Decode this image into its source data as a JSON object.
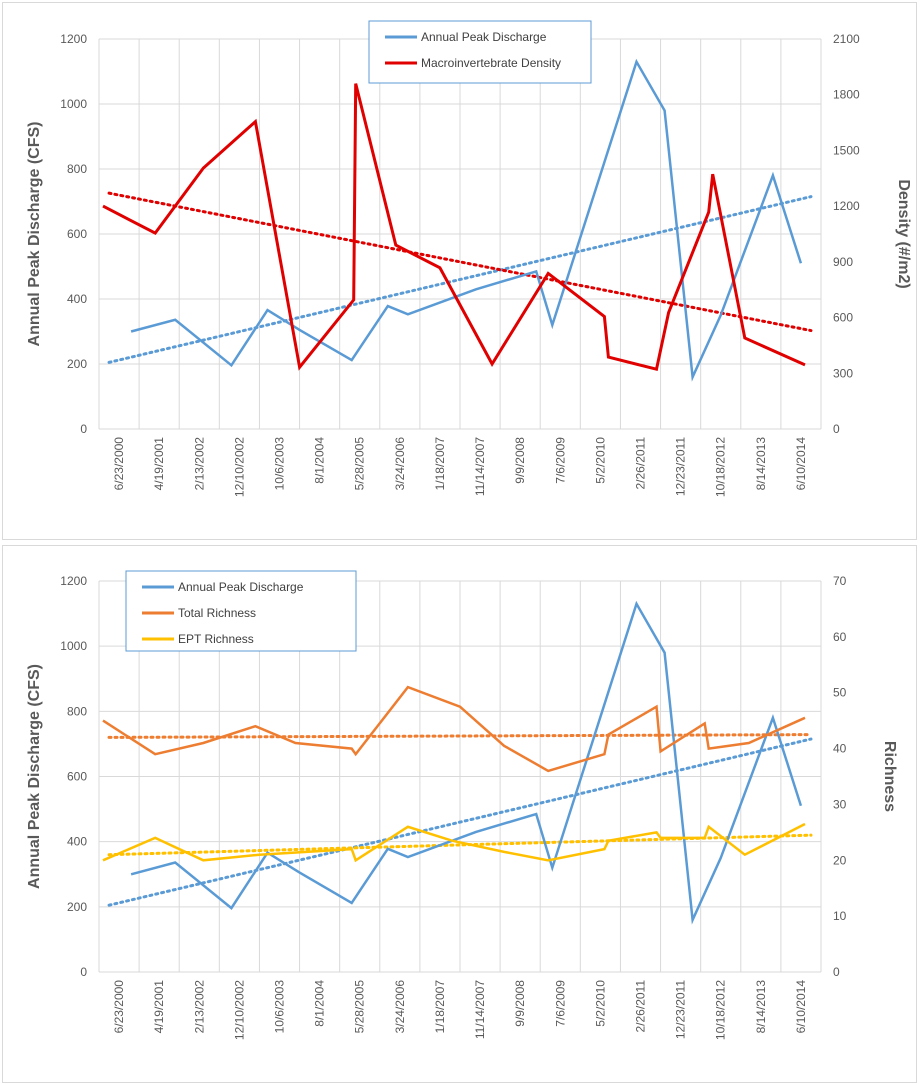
{
  "colors": {
    "discharge": "#5b9bd5",
    "density": "#e00000",
    "total_richness": "#ed7d31",
    "ept_richness": "#ffc000",
    "grid": "#d9d9d9",
    "axis_text": "#595959"
  },
  "chart_data": [
    {
      "type": "line",
      "x_categories": [
        "6/23/2000",
        "4/19/2001",
        "2/13/2002",
        "12/10/2002",
        "10/6/2003",
        "8/1/2004",
        "5/28/2005",
        "3/24/2006",
        "1/18/2007",
        "11/14/2007",
        "9/9/2008",
        "7/6/2009",
        "5/2/2010",
        "2/26/2011",
        "12/23/2011",
        "10/18/2012",
        "8/14/2013",
        "6/10/2014"
      ],
      "x_label": "",
      "y_left_label": "Annual Peak Discharge (CFS)",
      "y_left_lim": [
        0,
        1200
      ],
      "y_left_ticks": [
        "0",
        "200",
        "400",
        "600",
        "800",
        "1000",
        "1200"
      ],
      "y_right_label": "Density  (#/m2)",
      "y_right_lim": [
        0,
        2100
      ],
      "y_right_ticks": [
        "0",
        "300",
        "600",
        "900",
        "1200",
        "1500",
        "1800",
        "2100"
      ],
      "legend": [
        "Annual Peak Discharge",
        "Macroinvertebrate Density"
      ],
      "series": [
        {
          "name": "Annual Peak Discharge",
          "axis": "left",
          "points": [
            [
              0.8,
              300
            ],
            [
              1.9,
              336
            ],
            [
              3.3,
              196
            ],
            [
              4.2,
              366
            ],
            [
              5.0,
              305
            ],
            [
              6.3,
              212
            ],
            [
              7.2,
              378
            ],
            [
              7.7,
              353
            ],
            [
              9.4,
              430
            ],
            [
              10.9,
              485
            ],
            [
              11.3,
              320
            ],
            [
              13.4,
              1130
            ],
            [
              14.1,
              980
            ],
            [
              14.8,
              160
            ],
            [
              15.5,
              350
            ],
            [
              16.8,
              780
            ],
            [
              17.5,
              510
            ]
          ]
        },
        {
          "name": "Macroinvertebrate Density",
          "axis": "right",
          "trend": [
            1270,
            530
          ],
          "points": [
            [
              0.1,
              1200
            ],
            [
              1.4,
              1055
            ],
            [
              2.6,
              1405
            ],
            [
              3.9,
              1655
            ],
            [
              5.0,
              333
            ],
            [
              6.35,
              695
            ],
            [
              6.4,
              1860
            ],
            [
              7.4,
              990
            ],
            [
              8.5,
              868
            ],
            [
              9.8,
              350
            ],
            [
              11.2,
              838
            ],
            [
              12.6,
              605
            ],
            [
              12.7,
              387
            ],
            [
              13.9,
              322
            ],
            [
              14.2,
              627
            ],
            [
              15.2,
              1168
            ],
            [
              15.3,
              1372
            ],
            [
              16.1,
              490
            ],
            [
              17.6,
              345
            ]
          ]
        }
      ],
      "discharge_trend": [
        205,
        715
      ]
    },
    {
      "type": "line",
      "x_categories": [
        "6/23/2000",
        "4/19/2001",
        "2/13/2002",
        "12/10/2002",
        "10/6/2003",
        "8/1/2004",
        "5/28/2005",
        "3/24/2006",
        "1/18/2007",
        "11/14/2007",
        "9/9/2008",
        "7/6/2009",
        "5/2/2010",
        "2/26/2011",
        "12/23/2011",
        "10/18/2012",
        "8/14/2013",
        "6/10/2014"
      ],
      "x_label": "",
      "y_left_label": "Annual Peak Discharge (CFS)",
      "y_left_lim": [
        0,
        1200
      ],
      "y_left_ticks": [
        "0",
        "200",
        "400",
        "600",
        "800",
        "1000",
        "1200"
      ],
      "y_right_label": "Richness",
      "y_right_lim": [
        0,
        70
      ],
      "y_right_ticks": [
        "0",
        "10",
        "20",
        "30",
        "40",
        "50",
        "60",
        "70"
      ],
      "legend": [
        "Annual Peak Discharge",
        "Total Richness",
        "EPT Richness"
      ],
      "series": [
        {
          "name": "Annual Peak Discharge",
          "axis": "left",
          "points": [
            [
              0.8,
              300
            ],
            [
              1.9,
              336
            ],
            [
              3.3,
              196
            ],
            [
              4.2,
              366
            ],
            [
              5.0,
              305
            ],
            [
              6.3,
              212
            ],
            [
              7.2,
              378
            ],
            [
              7.7,
              353
            ],
            [
              9.4,
              430
            ],
            [
              10.9,
              485
            ],
            [
              11.3,
              320
            ],
            [
              13.4,
              1130
            ],
            [
              14.1,
              980
            ],
            [
              14.8,
              160
            ],
            [
              15.5,
              350
            ],
            [
              16.8,
              780
            ],
            [
              17.5,
              510
            ]
          ]
        },
        {
          "name": "Total Richness",
          "axis": "right",
          "trend": [
            42,
            42.5
          ],
          "points": [
            [
              0.1,
              45
            ],
            [
              1.4,
              39
            ],
            [
              2.6,
              41
            ],
            [
              3.9,
              44
            ],
            [
              4.9,
              41
            ],
            [
              6.3,
              40
            ],
            [
              6.4,
              39
            ],
            [
              7.7,
              51
            ],
            [
              9.0,
              47.5
            ],
            [
              10.1,
              40.5
            ],
            [
              11.2,
              36
            ],
            [
              12.6,
              39
            ],
            [
              12.7,
              42.5
            ],
            [
              13.9,
              47.5
            ],
            [
              14.0,
              39.5
            ],
            [
              15.1,
              44.5
            ],
            [
              15.2,
              40
            ],
            [
              16.2,
              41
            ],
            [
              17.6,
              45.5
            ]
          ]
        },
        {
          "name": "EPT Richness",
          "axis": "right",
          "trend": [
            21,
            24.5
          ],
          "points": [
            [
              0.1,
              20
            ],
            [
              1.4,
              24
            ],
            [
              2.6,
              20
            ],
            [
              4.0,
              21
            ],
            [
              6.3,
              22
            ],
            [
              6.4,
              20
            ],
            [
              7.7,
              26
            ],
            [
              8.8,
              23.5
            ],
            [
              10.1,
              21.5
            ],
            [
              11.2,
              20
            ],
            [
              12.6,
              22
            ],
            [
              12.7,
              23.5
            ],
            [
              13.9,
              25
            ],
            [
              14.0,
              24
            ],
            [
              15.1,
              24
            ],
            [
              15.2,
              26
            ],
            [
              16.1,
              21
            ],
            [
              17.6,
              26.5
            ]
          ]
        }
      ],
      "discharge_trend": [
        205,
        715
      ]
    }
  ]
}
